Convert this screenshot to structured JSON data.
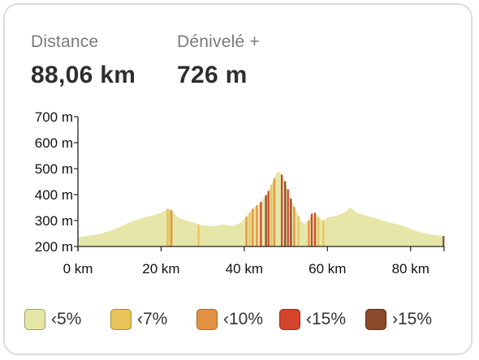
{
  "stats": {
    "distance": {
      "label": "Distance",
      "value": "88,06 km"
    },
    "elevation": {
      "label": "Dénivelé +",
      "value": "726 m"
    }
  },
  "legend": [
    {
      "label": "‹5%",
      "color": "#e6e6a8",
      "border": "#9c9c66"
    },
    {
      "label": "‹7%",
      "color": "#e8c35a",
      "border": "#b08a26"
    },
    {
      "label": "‹10%",
      "color": "#e29142",
      "border": "#ac6420"
    },
    {
      "label": "‹15%",
      "color": "#d4442c",
      "border": "#a02a16"
    },
    {
      "label": "›15%",
      "color": "#8b4a2b",
      "border": "#5a2c16"
    }
  ],
  "chart_data": {
    "type": "area",
    "y_tick_labels": [
      "200 m",
      "300 m",
      "400 m",
      "500 m",
      "600 m",
      "700 m"
    ],
    "y_ticks": [
      200,
      300,
      400,
      500,
      600,
      700
    ],
    "ylim": [
      200,
      700
    ],
    "x_tick_labels": [
      "0 km",
      "20 km",
      "40 km",
      "60 km",
      "80 km"
    ],
    "x_ticks": [
      0,
      20,
      40,
      60,
      80
    ],
    "xlim": [
      0,
      88.06
    ],
    "profile": [
      [
        0,
        235
      ],
      [
        2,
        240
      ],
      [
        4,
        245
      ],
      [
        6,
        252
      ],
      [
        8,
        262
      ],
      [
        10,
        275
      ],
      [
        12,
        290
      ],
      [
        14,
        302
      ],
      [
        16,
        312
      ],
      [
        18,
        320
      ],
      [
        20,
        330
      ],
      [
        21.5,
        345
      ],
      [
        22.5,
        340
      ],
      [
        24,
        312
      ],
      [
        26,
        300
      ],
      [
        28,
        292
      ],
      [
        29.5,
        282
      ],
      [
        31,
        280
      ],
      [
        33,
        278
      ],
      [
        35,
        285
      ],
      [
        37,
        278
      ],
      [
        39,
        290
      ],
      [
        40,
        305
      ],
      [
        41,
        325
      ],
      [
        42,
        345
      ],
      [
        43,
        358
      ],
      [
        44,
        372
      ],
      [
        45,
        392
      ],
      [
        46,
        420
      ],
      [
        47,
        455
      ],
      [
        47.8,
        485
      ],
      [
        48.5,
        488
      ],
      [
        49.5,
        465
      ],
      [
        50.5,
        420
      ],
      [
        51.5,
        370
      ],
      [
        52.5,
        335
      ],
      [
        53.5,
        300
      ],
      [
        54.5,
        285
      ],
      [
        55.5,
        300
      ],
      [
        56.3,
        330
      ],
      [
        57,
        330
      ],
      [
        58,
        310
      ],
      [
        59,
        300
      ],
      [
        60,
        312
      ],
      [
        62,
        318
      ],
      [
        64,
        330
      ],
      [
        65.5,
        350
      ],
      [
        67,
        330
      ],
      [
        69,
        320
      ],
      [
        71,
        312
      ],
      [
        73,
        302
      ],
      [
        75,
        292
      ],
      [
        77,
        285
      ],
      [
        79,
        275
      ],
      [
        81,
        262
      ],
      [
        83,
        252
      ],
      [
        85,
        246
      ],
      [
        87,
        242
      ],
      [
        88.06,
        240
      ]
    ],
    "gradient_segments": [
      {
        "x": 21.5,
        "class": 1
      },
      {
        "x": 22.0,
        "class": 1
      },
      {
        "x": 22.5,
        "class": 2
      },
      {
        "x": 29.0,
        "class": 1
      },
      {
        "x": 40.5,
        "class": 2
      },
      {
        "x": 41.3,
        "class": 1
      },
      {
        "x": 42.0,
        "class": 2
      },
      {
        "x": 43.0,
        "class": 2
      },
      {
        "x": 44.0,
        "class": 3
      },
      {
        "x": 45.2,
        "class": 4
      },
      {
        "x": 45.8,
        "class": 3
      },
      {
        "x": 46.5,
        "class": 1
      },
      {
        "x": 47.2,
        "class": 2
      },
      {
        "x": 49.0,
        "class": 3
      },
      {
        "x": 49.8,
        "class": 4
      },
      {
        "x": 50.5,
        "class": 3
      },
      {
        "x": 51.2,
        "class": 4
      },
      {
        "x": 52.0,
        "class": 2
      },
      {
        "x": 53.0,
        "class": 1
      },
      {
        "x": 55.5,
        "class": 2
      },
      {
        "x": 56.2,
        "class": 3
      },
      {
        "x": 57.0,
        "class": 3
      },
      {
        "x": 57.8,
        "class": 1
      },
      {
        "x": 59.0,
        "class": 1
      },
      {
        "x": 87.9,
        "class": 4
      }
    ],
    "grid": false,
    "legend_position": "bottom"
  }
}
